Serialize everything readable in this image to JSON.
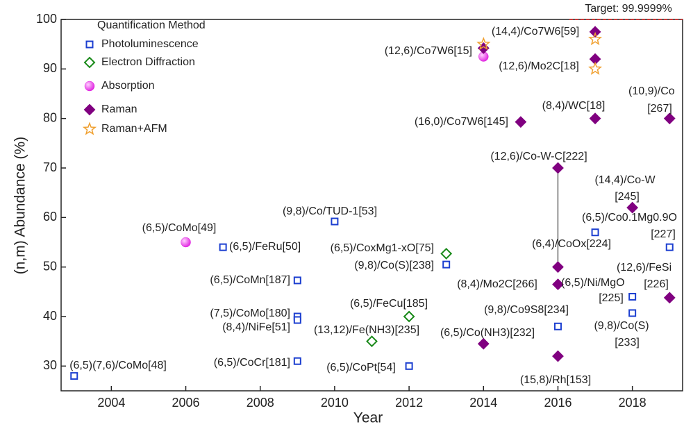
{
  "chart_data": {
    "type": "scatter",
    "xlabel": "Year",
    "ylabel": "(n,m) Abundance (%)",
    "xlim": [
      2002.65,
      2019.35
    ],
    "ylim": [
      25,
      100
    ],
    "xticks": [
      2004,
      2006,
      2008,
      2010,
      2012,
      2014,
      2016,
      2018
    ],
    "yticks": [
      30,
      40,
      50,
      60,
      70,
      80,
      90,
      100
    ],
    "legend_title": "Quantification Method",
    "legend": "upper left",
    "target": {
      "label": "Target: 99.9999%",
      "value": 99.9999,
      "color": "#e02020"
    },
    "series": [
      {
        "name": "Photoluminescence",
        "color": "#1c3fd0",
        "marker": "square",
        "x": [
          2003,
          2007,
          2009,
          2009,
          2009,
          2009,
          2010,
          2012,
          2013,
          2016,
          2017,
          2018,
          2018,
          2019
        ],
        "values": [
          28,
          54,
          47.3,
          40,
          39.3,
          31,
          59.2,
          30,
          50.5,
          38,
          57,
          44,
          40.7,
          54
        ]
      },
      {
        "name": "Electron Diffraction",
        "color": "#1a8a1a",
        "marker": "diamond-open",
        "x": [
          2011,
          2012,
          2013
        ],
        "values": [
          35,
          40,
          52.7
        ]
      },
      {
        "name": "Absorption",
        "color": "#e020e0",
        "marker": "circle",
        "x": [
          2006,
          2014
        ],
        "values": [
          55,
          92.5
        ]
      },
      {
        "name": "Raman",
        "color": "#800080",
        "marker": "diamond",
        "x": [
          2014,
          2014,
          2015,
          2016,
          2016,
          2016,
          2016,
          2017,
          2017,
          2017,
          2018,
          2019,
          2019
        ],
        "values": [
          34.5,
          94.2,
          79.3,
          70,
          50,
          46.5,
          32,
          97.5,
          92,
          80,
          62,
          80,
          43.8
        ]
      },
      {
        "name": "Raman+AFM",
        "color": "#f0a030",
        "marker": "star",
        "x": [
          2014,
          2017,
          2017
        ],
        "values": [
          95,
          96,
          90
        ]
      }
    ],
    "annotations": [
      "(6,5)(7,6)/CoMo[48]",
      "(6,5)/CoMo[49]",
      "(6,5)/FeRu[50]",
      "(6,5)/CoMn[187]",
      "(7,5)/CoMo[180]",
      "(8,4)/NiFe[51]",
      "(6,5)/CoCr[181]",
      "(9,8)/Co/TUD-1[53]",
      "(13,12)/Fe(NH3)[235]",
      "(6,5)/FeCu[185]",
      "(6,5)/CoPt[54]",
      "(6,5)/CoxMg1-xO[75]",
      "(9,8)/Co(S)[238]",
      "(12,6)/Co7W6[15]",
      "(6,5)/Co(NH3)[232]",
      "(16,0)/Co7W6[145]",
      "(14,4)/Co7W6[59]",
      "(12,6)/Mo2C[18]",
      "(8,4)/WC[18]",
      "(12,6)/Co-W-C[222]",
      "(6,4)/CoOx[224]",
      "(8,4)/Mo2C[266]",
      "(6,5)/Ni/MgO",
      "[225]",
      "(9,8)/Co9S8[234]",
      "(15,8)/Rh[153]",
      "(9,8)/Co(S)",
      "[233]",
      "(14,4)/Co-W",
      "[245]",
      "(6,5)/Co0.1Mg0.9O",
      "[227]",
      "(12,6)/FeSi",
      "[226]",
      "(10,9)/Co",
      "[267]"
    ]
  }
}
